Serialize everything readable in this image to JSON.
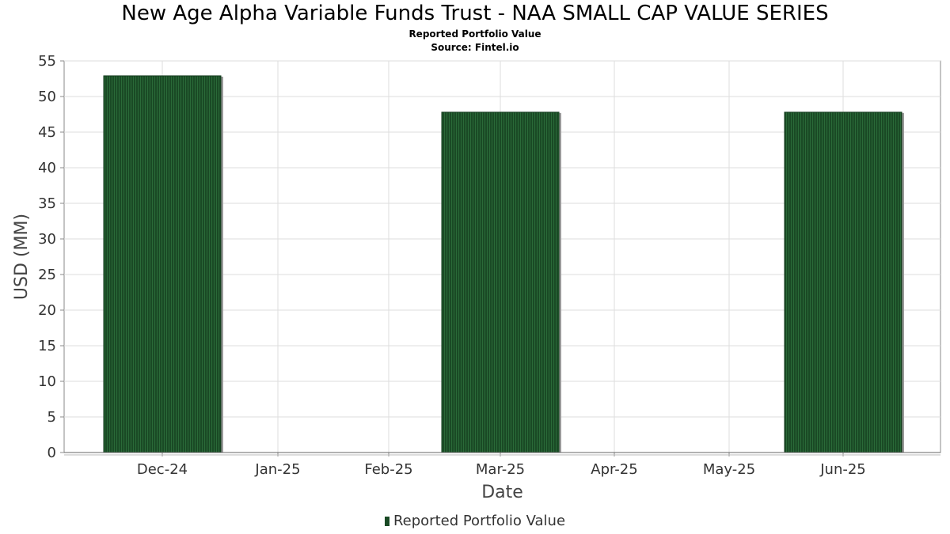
{
  "title": "New Age Alpha Variable Funds Trust - NAA SMALL CAP VALUE SERIES",
  "subtitle": "Reported Portfolio Value",
  "source": "Source: Fintel.io",
  "legend": {
    "label": "Reported Portfolio Value",
    "position": "bottom-center"
  },
  "colors": {
    "bar": "#1a4a25",
    "bar_stripe": "#2a6a38",
    "grid": "#dddddd",
    "axis": "#888888"
  },
  "chart_data": {
    "type": "bar",
    "title": "New Age Alpha Variable Funds Trust - NAA SMALL CAP VALUE SERIES",
    "subtitle": "Reported Portfolio Value",
    "xlabel": "Date",
    "ylabel": "USD (MM)",
    "categories": [
      "Dec-24",
      "Jan-25",
      "Feb-25",
      "Mar-25",
      "Apr-25",
      "May-25",
      "Jun-25"
    ],
    "x_tick_labels": [
      "Dec-24",
      "Jan-25",
      "Feb-25",
      "Mar-25",
      "Apr-25",
      "May-25",
      "Jun-25"
    ],
    "y_tick_labels": [
      "0",
      "5",
      "10",
      "15",
      "20",
      "25",
      "30",
      "35",
      "40",
      "45",
      "50",
      "55"
    ],
    "series": [
      {
        "name": "Reported Portfolio Value",
        "points": [
          {
            "x": "Dec-24",
            "value": 52.9
          },
          {
            "x": "Mar-25",
            "value": 47.8
          },
          {
            "x": "Jun-25",
            "value": 47.8
          }
        ]
      }
    ],
    "ylim": [
      0,
      55
    ],
    "grid": true
  }
}
